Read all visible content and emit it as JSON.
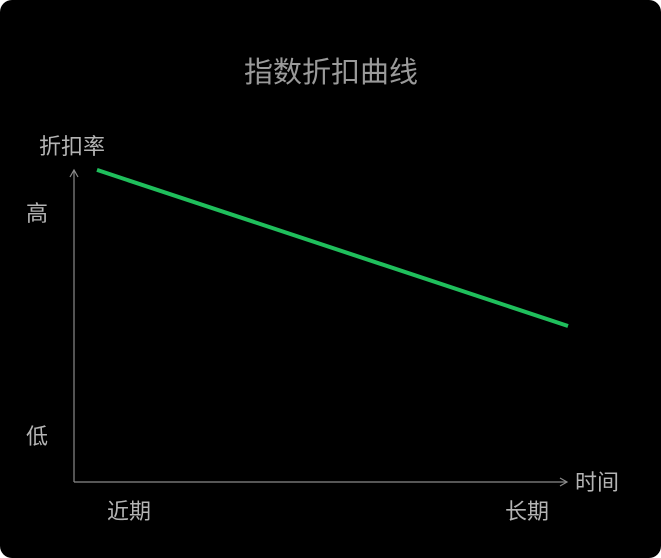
{
  "chart_data": {
    "type": "line",
    "title": "指数折扣曲线",
    "ylabel": "折扣率",
    "xlabel": "时间",
    "y_tick_labels": [
      "高",
      "低"
    ],
    "x_tick_labels": [
      "近期",
      "长期"
    ],
    "series": [
      {
        "x": [
          0,
          1
        ],
        "y": [
          0.94,
          0.47
        ],
        "color": "#1fbf5c"
      }
    ],
    "xlim": [
      0,
      1
    ],
    "ylim": [
      0,
      1
    ],
    "grid": false,
    "colors": {
      "background": "#000000",
      "axis": "#8a8a8a",
      "text": "#b4b4b4"
    }
  }
}
